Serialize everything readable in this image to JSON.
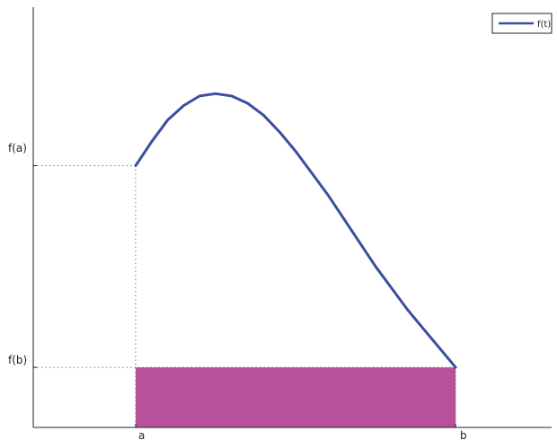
{
  "chart_data": {
    "type": "line",
    "title": "",
    "xlabel": "",
    "ylabel": "",
    "x_tick_labels": [
      "a",
      "b"
    ],
    "y_tick_labels": [
      "f(a)",
      "f(b)"
    ],
    "xlim": [
      -0.32,
      1.3
    ],
    "ylim": [
      -0.25,
      1.5
    ],
    "grid": false,
    "legend": {
      "position": "top-right",
      "entries": [
        "f(t)"
      ]
    },
    "series": [
      {
        "name": "f(t)",
        "color": "#3a4fa0",
        "x": [
          0,
          0.05,
          0.1,
          0.15,
          0.2,
          0.25,
          0.3,
          0.35,
          0.4,
          0.45,
          0.5,
          0.55,
          0.6,
          0.65,
          0.7,
          0.75,
          0.8,
          0.85,
          0.9,
          0.95,
          1.0
        ],
        "y": [
          0.84,
          0.94,
          1.03,
          1.09,
          1.13,
          1.14,
          1.13,
          1.1,
          1.05,
          0.98,
          0.9,
          0.81,
          0.72,
          0.62,
          0.52,
          0.42,
          0.33,
          0.24,
          0.16,
          0.08,
          0.0
        ]
      }
    ],
    "shaded_region": {
      "x_from": 0,
      "x_to": 1,
      "y_from": -0.28,
      "y_to": 0,
      "color": "#b9509b"
    },
    "reference_lines": {
      "fa": {
        "x": 0,
        "y": 0.84
      },
      "fb": {
        "x": 1,
        "y": 0
      }
    }
  }
}
